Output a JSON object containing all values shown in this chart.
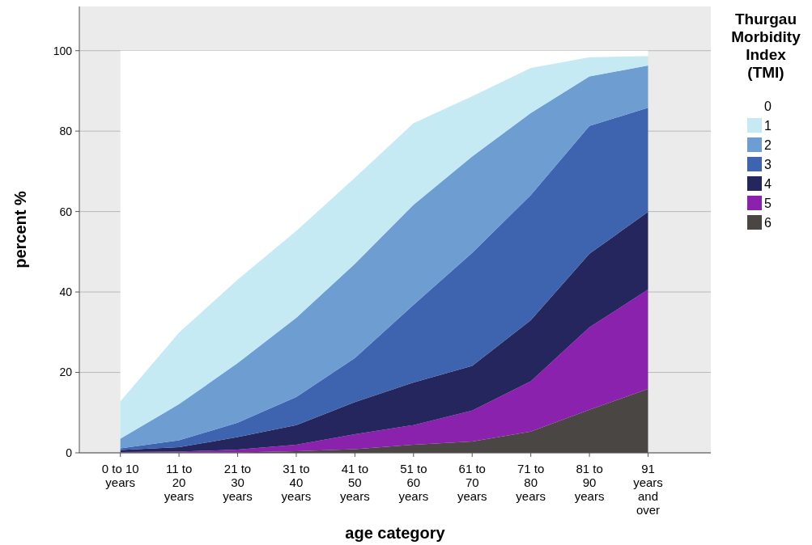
{
  "chart_data": {
    "type": "area",
    "stacked": true,
    "xlabel": "age category",
    "ylabel": "percent %",
    "legend_title": "Thurgau Morbidity Index (TMI)",
    "legend": "right",
    "grid": "y",
    "categories": [
      "0 to 10 years",
      "11 to 20 years",
      "21 to 30 years",
      "31 to 40 years",
      "41 to 50 years",
      "51 to 60 years",
      "61 to 70 years",
      "71 to 80 years",
      "81 to 90 years",
      "91 years and over"
    ],
    "ylim": [
      0,
      111
    ],
    "yticks": [
      0,
      20,
      40,
      60,
      80,
      100
    ],
    "series": [
      {
        "name": "6",
        "color": "#4a4643",
        "values": [
          0.1,
          0.1,
          0.1,
          0.4,
          0.9,
          2.0,
          2.8,
          5.3,
          10.7,
          15.9
        ]
      },
      {
        "name": "5",
        "color": "#8a22ad",
        "values": [
          0.1,
          0.2,
          0.7,
          1.6,
          3.7,
          4.9,
          7.7,
          12.5,
          20.5,
          24.7
        ]
      },
      {
        "name": "4",
        "color": "#26265f",
        "values": [
          0.5,
          1.1,
          3.1,
          4.9,
          8.0,
          10.6,
          11.1,
          15.2,
          18.3,
          19.3
        ]
      },
      {
        "name": "3",
        "color": "#3e64af",
        "values": [
          0.4,
          1.7,
          3.6,
          7.0,
          11.0,
          19.3,
          28.1,
          31.1,
          31.8,
          25.9
        ]
      },
      {
        "name": "2",
        "color": "#6e9ed1",
        "values": [
          2.4,
          9.0,
          14.8,
          19.7,
          23.4,
          24.9,
          24.0,
          20.4,
          12.3,
          10.5
        ]
      },
      {
        "name": "1",
        "color": "#c6eaf3",
        "values": [
          9.3,
          17.8,
          20.8,
          21.6,
          21.4,
          20.3,
          15.0,
          11.2,
          4.8,
          2.4
        ]
      },
      {
        "name": "0",
        "color": "#ffffff",
        "values": [
          87.2,
          70.1,
          56.9,
          44.8,
          31.6,
          18.0,
          11.3,
          4.3,
          1.6,
          1.3
        ]
      }
    ]
  }
}
